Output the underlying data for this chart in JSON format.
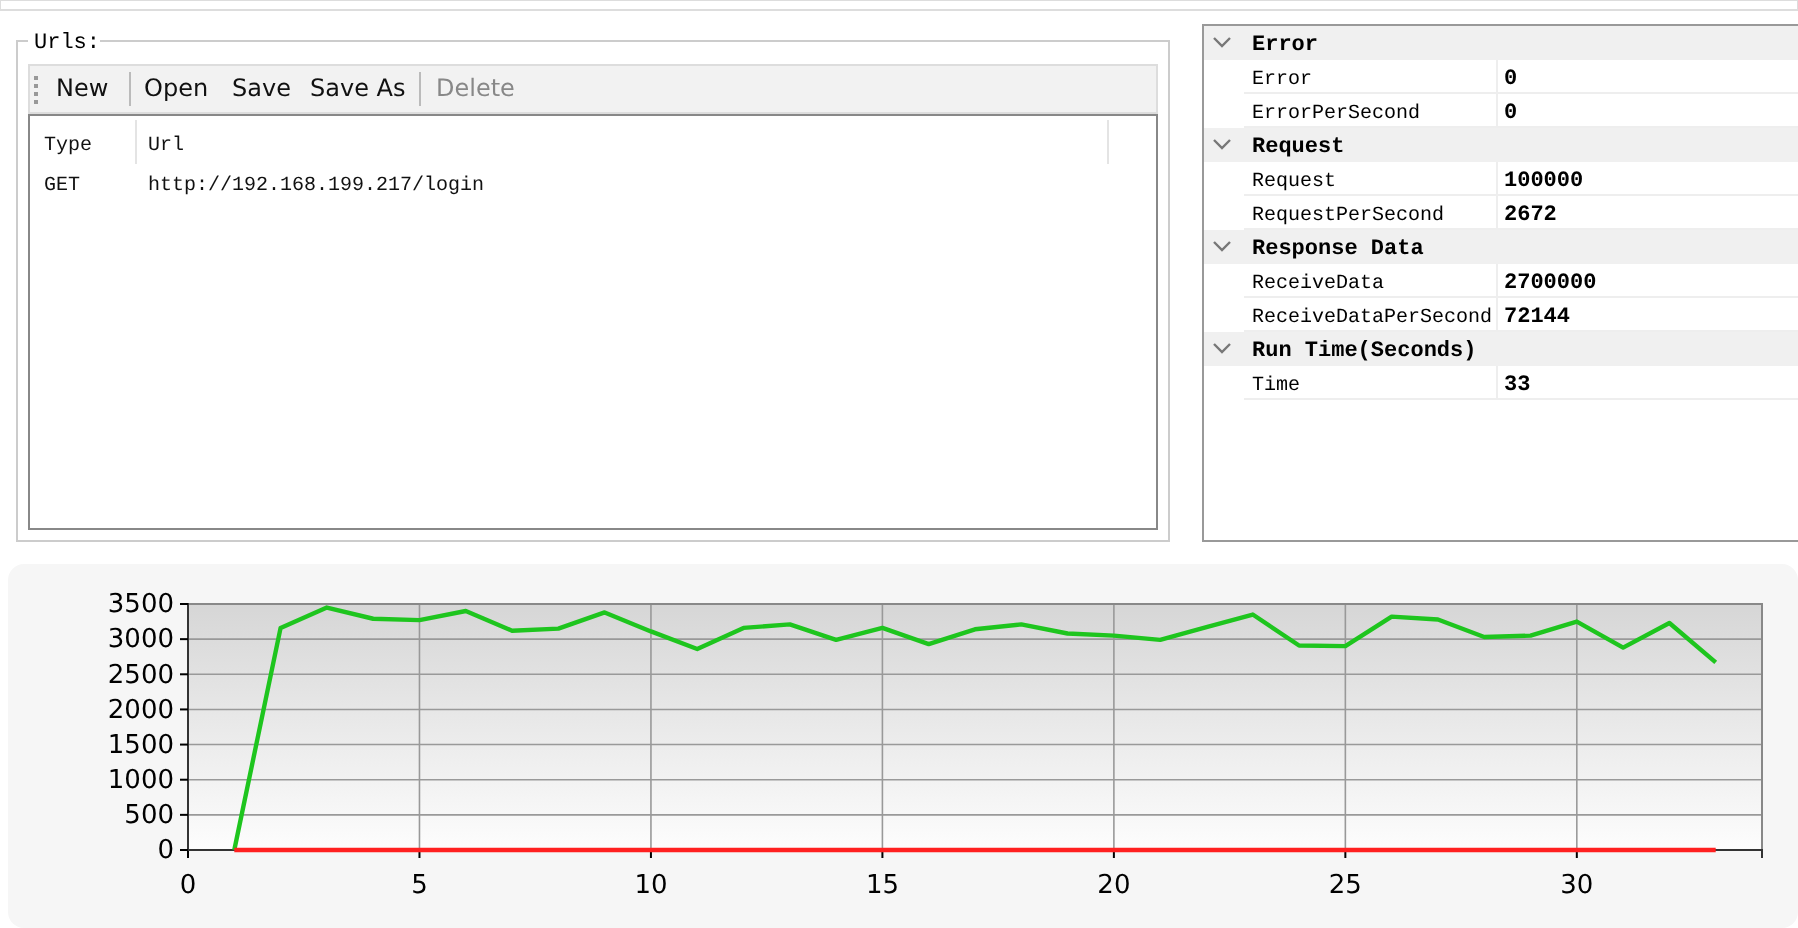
{
  "chart_data": [
    {
      "type": "other",
      "title": "Urls:",
      "annotations": [
        "New",
        "Open",
        "Save",
        "Save As",
        "Delete",
        "Type",
        "Url",
        "GET",
        "http://192.168.199.217/login"
      ]
    },
    {
      "type": "other",
      "annotations": [
        "Error",
        "Error",
        "0",
        "ErrorPerSecond",
        "0",
        "Request",
        "Request",
        "100000",
        "RequestPerSecond",
        "2672",
        "Response Data",
        "ReceiveData",
        "2700000",
        "ReceiveDataPerSecond",
        "72144",
        "Run Time(Seconds)",
        "Time",
        "33"
      ]
    },
    {
      "type": "line",
      "x": [
        1,
        2,
        3,
        4,
        5,
        6,
        7,
        8,
        9,
        10,
        11,
        12,
        13,
        14,
        15,
        16,
        17,
        18,
        19,
        20,
        21,
        22,
        23,
        24,
        25,
        26,
        27,
        28,
        29,
        30,
        31,
        32,
        33
      ],
      "series": [
        {
          "color": "#1ec51e",
          "values": [
            0,
            3160,
            3450,
            3290,
            3270,
            3400,
            3120,
            3150,
            3380,
            3110,
            2860,
            3160,
            3210,
            2990,
            3160,
            2930,
            3140,
            3210,
            3080,
            3050,
            2990,
            3170,
            3350,
            2910,
            2900,
            3320,
            3280,
            3030,
            3050,
            3250,
            2880,
            3230,
            2670
          ]
        },
        {
          "color": "#ff2020",
          "values": [
            0,
            0,
            0,
            0,
            0,
            0,
            0,
            0,
            0,
            0,
            0,
            0,
            0,
            0,
            0,
            0,
            0,
            0,
            0,
            0,
            0,
            0,
            0,
            0,
            0,
            0,
            0,
            0,
            0,
            0,
            0,
            0,
            0
          ]
        }
      ],
      "xlim": [
        0,
        34
      ],
      "xticks": [
        0,
        5,
        10,
        15,
        20,
        25,
        30
      ],
      "ylim": [
        0,
        3500
      ],
      "yticks": [
        0,
        500,
        1000,
        1500,
        2000,
        2500,
        3000,
        3500
      ],
      "grid": true,
      "marker": "none",
      "line_style": "solid"
    }
  ]
}
